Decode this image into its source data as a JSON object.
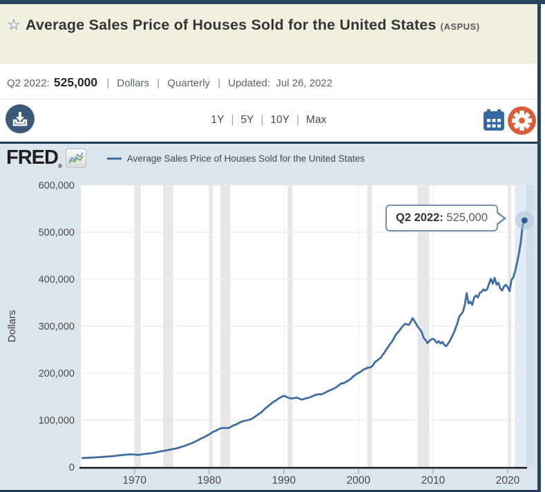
{
  "header": {
    "star_icon": "☆",
    "title": "Average Sales Price of Houses Sold for the United States",
    "series_id": "(ASPUS)"
  },
  "subheader": {
    "period_label": "Q2 2022:",
    "value": "525,000",
    "units": "Dollars",
    "frequency": "Quarterly",
    "updated_label": "Updated:",
    "updated_date": "Jul 26, 2022",
    "separator": "|"
  },
  "toolbar": {
    "range_1y": "1Y",
    "range_5y": "5Y",
    "range_10y": "10Y",
    "range_max": "Max",
    "download_icon": "download",
    "calendar_icon": "calendar",
    "gear_icon": "settings-gear"
  },
  "chart_header": {
    "logo_text": "FRED",
    "registered_mark": "®",
    "legend_label": "Average Sales Price of Houses Sold for the United States"
  },
  "tooltip": {
    "label": "Q2 2022:",
    "value": "525,000"
  },
  "colors": {
    "accent_navy": "#27455f",
    "header_beige": "#f1f0de",
    "line_blue": "#3e6d9f",
    "gear_orange": "#da5c38",
    "calendar_blue": "#34689e",
    "chart_bg": "#dde5ec",
    "recession_gray": "#e7e7e7",
    "highlight_band": "#ccd9ea"
  },
  "chart_data": {
    "type": "line",
    "title": "Average Sales Price of Houses Sold for the United States",
    "xlabel": "",
    "ylabel": "Dollars",
    "xlim": [
      1962.8,
      2022.5
    ],
    "ylim": [
      0,
      600000
    ],
    "grid": true,
    "legend_position": "top",
    "x_ticks": [
      1970,
      1980,
      1990,
      2000,
      2010,
      2020
    ],
    "y_ticks": [
      {
        "v": 0,
        "label": "0"
      },
      {
        "v": 100000,
        "label": "100,000"
      },
      {
        "v": 200000,
        "label": "200,000"
      },
      {
        "v": 300000,
        "label": "300,000"
      },
      {
        "v": 400000,
        "label": "400,000"
      },
      {
        "v": 500000,
        "label": "500,000"
      },
      {
        "v": 600000,
        "label": "600,000"
      }
    ],
    "recessions": [
      [
        1969.92,
        1970.83
      ],
      [
        1973.83,
        1975.17
      ],
      [
        1980.0,
        1980.5
      ],
      [
        1981.5,
        1982.83
      ],
      [
        1990.5,
        1991.17
      ],
      [
        2001.17,
        2001.83
      ],
      [
        2007.92,
        2009.5
      ],
      [
        2020.08,
        2020.42
      ]
    ],
    "highlight_x": 2022.25,
    "series": [
      {
        "name": "Average Sales Price of Houses Sold for the United States",
        "frequency": "quarterly",
        "x_start": 1963.0,
        "x_step": 0.25,
        "values": [
          19300,
          19500,
          19500,
          19800,
          20200,
          20100,
          20600,
          20800,
          21000,
          21200,
          21300,
          21800,
          22200,
          22400,
          22600,
          22900,
          23300,
          23600,
          24200,
          24700,
          25100,
          25500,
          26100,
          26400,
          26600,
          27000,
          27200,
          27100,
          26700,
          26400,
          26100,
          26500,
          27300,
          27900,
          28200,
          28700,
          29000,
          29600,
          30200,
          30900,
          31800,
          32800,
          33700,
          34300,
          35000,
          35800,
          36400,
          37200,
          38000,
          38800,
          39500,
          40400,
          41700,
          43000,
          44300,
          45600,
          46900,
          48400,
          50000,
          51600,
          53300,
          55400,
          57400,
          59400,
          61300,
          63300,
          65300,
          67300,
          69600,
          72200,
          74700,
          76500,
          78200,
          80900,
          82200,
          83100,
          83400,
          83700,
          83000,
          84100,
          86600,
          88800,
          90100,
          91700,
          94200,
          96200,
          97300,
          98500,
          99200,
          100300,
          101400,
          103200,
          105700,
          108700,
          111500,
          114300,
          117100,
          120800,
          124600,
          128000,
          131000,
          134300,
          137500,
          140200,
          142500,
          145600,
          147800,
          150200,
          151600,
          150400,
          148600,
          146900,
          146100,
          146600,
          147200,
          147900,
          146500,
          144200,
          143800,
          145400,
          146400,
          147300,
          148600,
          150300,
          152100,
          153700,
          154700,
          155200,
          154800,
          156200,
          158100,
          160400,
          162200,
          164300,
          165600,
          167500,
          169900,
          172600,
          175900,
          178600,
          178200,
          180900,
          182800,
          185600,
          188100,
          192400,
          195000,
          198300,
          200500,
          202600,
          205300,
          208600,
          209300,
          212100,
          211800,
          213500,
          217800,
          224300,
          226500,
          230100,
          232600,
          239100,
          243900,
          250600,
          256100,
          262300,
          267000,
          274100,
          281700,
          285900,
          290700,
          296300,
          301000,
          304800,
          303900,
          302700,
          308500,
          316900,
          311200,
          304300,
          298000,
          293400,
          286500,
          275100,
          270900,
          263900,
          268300,
          271800,
          272900,
          269900,
          264400,
          268100,
          263000,
          266500,
          260100,
          257400,
          262600,
          268800,
          276900,
          284800,
          295300,
          305400,
          320100,
          325200,
          330400,
          345800,
          370100,
          348300,
          352400,
          345200,
          360600,
          365300,
          360900,
          370800,
          372900,
          378200,
          375400,
          378900,
          390500,
          400700,
          390300,
          402900,
          388300,
          392600,
          380100,
          375700,
          384400,
          388100,
          383000,
          374500,
          398300,
          403900,
          416900,
          434600,
          454300,
          477900,
          514100,
          525000
        ]
      }
    ]
  }
}
